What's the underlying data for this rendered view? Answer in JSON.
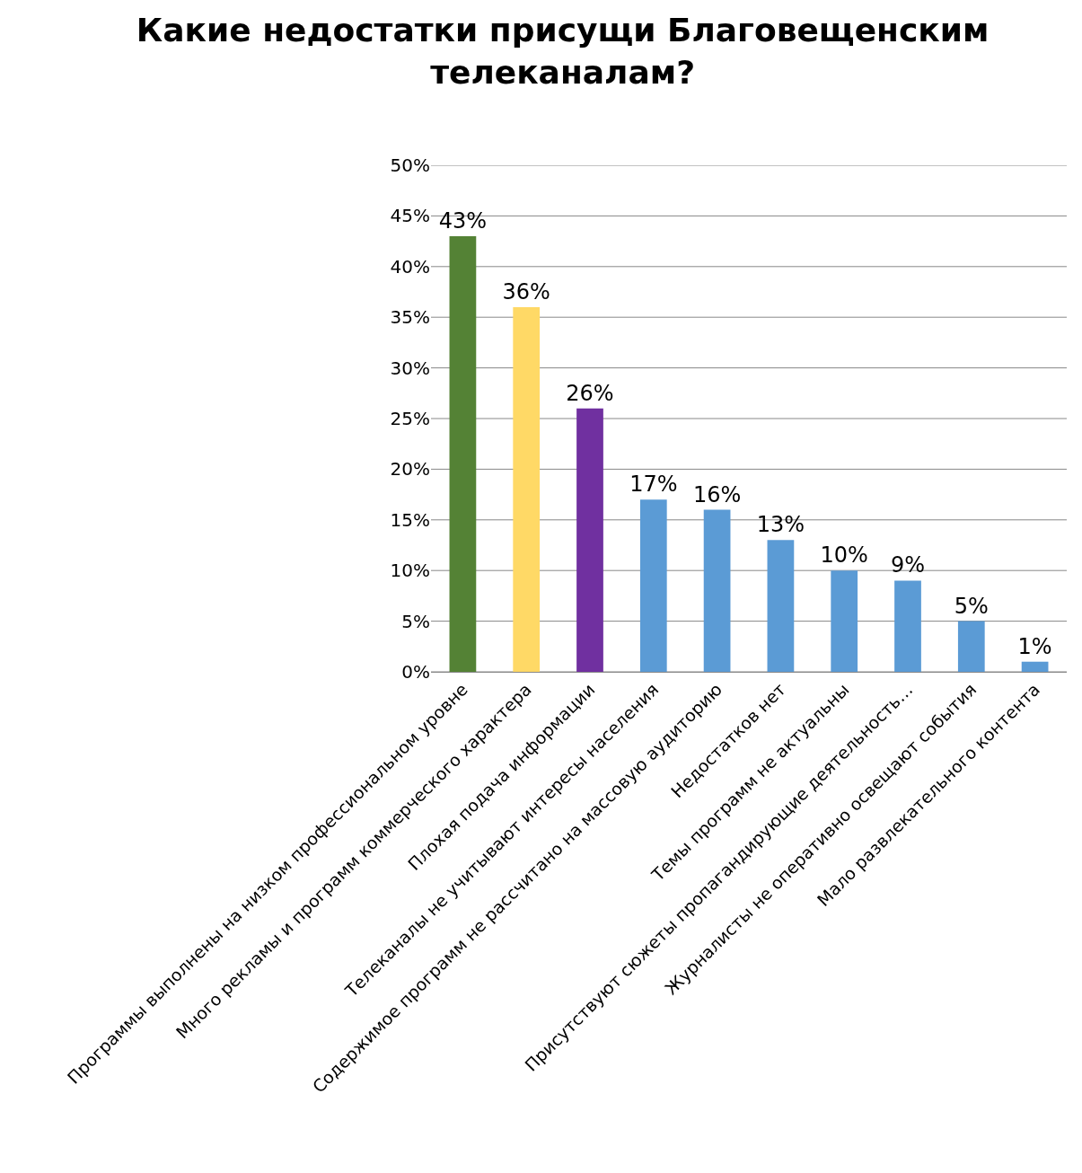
{
  "chart_data": {
    "type": "bar",
    "title": "Какие недостатки присущи Благовещенским телеканалам?",
    "categories": [
      "Программы выполнены на низком профессиональном уровне",
      "Много рекламы и программ коммерческого характера",
      "Плохая подача информации",
      "Телеканалы не учитывают интересы населения",
      "Содержимое программ не рассчитано на массовую аудиторию",
      "Недостатков нет",
      "Темы программ не актуальны",
      "Присутствуют сюжеты пропагандирующие деятельность…",
      "Журналисты не оперативно освещают события",
      "Мало развлекательного контента"
    ],
    "values": [
      43,
      36,
      26,
      17,
      16,
      13,
      10,
      9,
      5,
      1
    ],
    "value_labels": [
      "43%",
      "36%",
      "26%",
      "17%",
      "16%",
      "13%",
      "10%",
      "9%",
      "5%",
      "1%"
    ],
    "colors": [
      "#548235",
      "#ffd966",
      "#7030a0",
      "#5b9bd5",
      "#5b9bd5",
      "#5b9bd5",
      "#5b9bd5",
      "#5b9bd5",
      "#5b9bd5",
      "#5b9bd5"
    ],
    "ylim": [
      0,
      50
    ],
    "yticks": [
      {
        "value": 0,
        "label": "0%"
      },
      {
        "value": 5,
        "label": "5%"
      },
      {
        "value": 10,
        "label": "10%"
      },
      {
        "value": 15,
        "label": "15%"
      },
      {
        "value": 20,
        "label": "20%"
      },
      {
        "value": 25,
        "label": "25%"
      },
      {
        "value": 30,
        "label": "30%"
      },
      {
        "value": 35,
        "label": "35%"
      },
      {
        "value": 40,
        "label": "40%"
      },
      {
        "value": 45,
        "label": "45%"
      },
      {
        "value": 50,
        "label": "50%"
      }
    ],
    "grid": "y"
  }
}
